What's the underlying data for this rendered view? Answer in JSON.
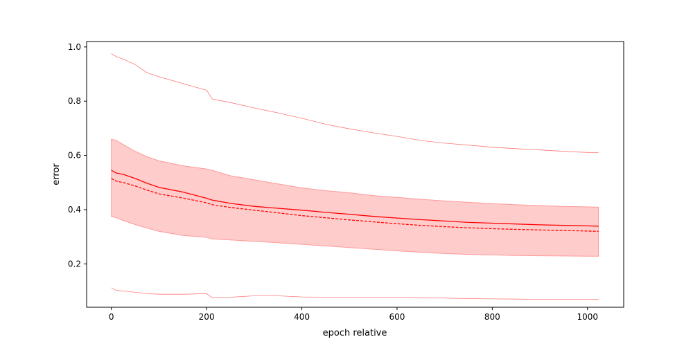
{
  "chart_data": {
    "type": "line",
    "title": "",
    "xlabel": "epoch relative",
    "ylabel": "error",
    "xlim": [
      -52,
      1076
    ],
    "ylim": [
      0.04,
      1.02
    ],
    "xticks": [
      0,
      200,
      400,
      600,
      800,
      1000
    ],
    "xtick_labels": [
      "0",
      "200",
      "400",
      "600",
      "800",
      "1000"
    ],
    "yticks": [
      0.2,
      0.4,
      0.6,
      0.8,
      1.0
    ],
    "ytick_labels": [
      "0.2",
      "0.4",
      "0.6",
      "0.8",
      "1.0"
    ],
    "grid": false,
    "legend": "none",
    "colors": {
      "line": "#ff0000",
      "band_fill": "#ffcccc",
      "band_edge": "#ff9999",
      "envelope": "#ff7777"
    },
    "x": [
      0,
      10,
      25,
      50,
      75,
      100,
      150,
      200,
      212,
      250,
      300,
      350,
      400,
      450,
      500,
      550,
      600,
      650,
      700,
      750,
      800,
      850,
      900,
      950,
      1000,
      1023
    ],
    "series": [
      {
        "style": "solid",
        "values": [
          0.545,
          0.535,
          0.53,
          0.515,
          0.497,
          0.482,
          0.465,
          0.442,
          0.435,
          0.423,
          0.412,
          0.405,
          0.398,
          0.39,
          0.383,
          0.375,
          0.369,
          0.363,
          0.358,
          0.353,
          0.35,
          0.347,
          0.344,
          0.342,
          0.34,
          0.339
        ]
      },
      {
        "style": "dashed",
        "values": [
          0.515,
          0.505,
          0.5,
          0.487,
          0.472,
          0.458,
          0.443,
          0.425,
          0.418,
          0.408,
          0.398,
          0.388,
          0.378,
          0.37,
          0.362,
          0.355,
          0.348,
          0.342,
          0.337,
          0.333,
          0.33,
          0.327,
          0.325,
          0.323,
          0.321,
          0.32
        ]
      },
      {
        "style": "band-upper",
        "values": [
          0.66,
          0.655,
          0.64,
          0.615,
          0.595,
          0.58,
          0.562,
          0.55,
          0.545,
          0.525,
          0.51,
          0.495,
          0.48,
          0.47,
          0.462,
          0.452,
          0.445,
          0.438,
          0.432,
          0.427,
          0.422,
          0.418,
          0.415,
          0.412,
          0.41,
          0.409
        ]
      },
      {
        "style": "band-lower",
        "values": [
          0.375,
          0.37,
          0.36,
          0.345,
          0.332,
          0.32,
          0.305,
          0.298,
          0.292,
          0.288,
          0.283,
          0.278,
          0.272,
          0.266,
          0.26,
          0.254,
          0.248,
          0.243,
          0.238,
          0.235,
          0.233,
          0.231,
          0.23,
          0.229,
          0.228,
          0.228
        ]
      },
      {
        "style": "thin-upper",
        "values": [
          0.975,
          0.965,
          0.955,
          0.935,
          0.905,
          0.89,
          0.865,
          0.84,
          0.808,
          0.795,
          0.775,
          0.757,
          0.737,
          0.715,
          0.698,
          0.683,
          0.67,
          0.655,
          0.645,
          0.638,
          0.63,
          0.625,
          0.62,
          0.615,
          0.611,
          0.611
        ]
      },
      {
        "style": "thin-lower",
        "values": [
          0.112,
          0.102,
          0.1,
          0.095,
          0.09,
          0.088,
          0.088,
          0.09,
          0.075,
          0.077,
          0.082,
          0.082,
          0.078,
          0.077,
          0.077,
          0.077,
          0.077,
          0.075,
          0.074,
          0.072,
          0.071,
          0.07,
          0.069,
          0.069,
          0.069,
          0.069
        ]
      }
    ]
  }
}
